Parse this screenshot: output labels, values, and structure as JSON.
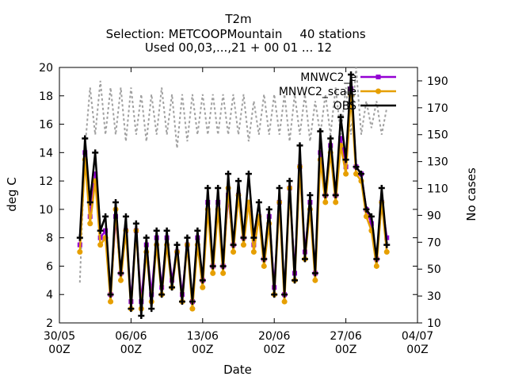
{
  "chart_data": {
    "type": "line",
    "title": "T2m",
    "subtitle_1": "Selection: METCOOPMountain",
    "subtitle_stations": "40 stations",
    "subtitle_2": "Used 00,03,...,21 + 00 01 ... 12",
    "xlabel": "Date",
    "ylabel": "deg C",
    "y2label": "No cases",
    "x_range": [
      "2023-05-30T00Z",
      "2023-07-04T00Z"
    ],
    "ylim": [
      2,
      20
    ],
    "y2lim": [
      10,
      200
    ],
    "x_ticks": [
      {
        "date": "2023-05-30T00Z",
        "line1": "30/05",
        "line2": "00Z"
      },
      {
        "date": "2023-06-06T00Z",
        "line1": "06/06",
        "line2": "00Z"
      },
      {
        "date": "2023-06-13T00Z",
        "line1": "13/06",
        "line2": "00Z"
      },
      {
        "date": "2023-06-20T00Z",
        "line1": "20/06",
        "line2": "00Z"
      },
      {
        "date": "2023-06-27T00Z",
        "line1": "27/06",
        "line2": "00Z"
      },
      {
        "date": "2023-07-04T00Z",
        "line1": "04/07",
        "line2": "00Z"
      }
    ],
    "y_ticks": [
      "2",
      "4",
      "6",
      "8",
      "10",
      "12",
      "14",
      "16",
      "18",
      "20"
    ],
    "y2_ticks": [
      "10",
      "30",
      "50",
      "70",
      "90",
      "110",
      "130",
      "150",
      "170",
      "190"
    ],
    "legend_position": "top-right",
    "series": [
      {
        "name": "MNWC2_e",
        "color": "#9400d3",
        "marker": "square",
        "axis": "left",
        "x": [
          "2023-06-01T00Z",
          "2023-06-01T12Z",
          "2023-06-02T00Z",
          "2023-06-02T12Z",
          "2023-06-03T00Z",
          "2023-06-03T12Z",
          "2023-06-04T00Z",
          "2023-06-04T12Z",
          "2023-06-05T00Z",
          "2023-06-05T12Z",
          "2023-06-06T00Z",
          "2023-06-06T12Z",
          "2023-06-07T00Z",
          "2023-06-07T12Z",
          "2023-06-08T00Z",
          "2023-06-08T12Z",
          "2023-06-09T00Z",
          "2023-06-09T12Z",
          "2023-06-10T00Z",
          "2023-06-10T12Z",
          "2023-06-11T00Z",
          "2023-06-11T12Z",
          "2023-06-12T00Z",
          "2023-06-12T12Z",
          "2023-06-13T00Z",
          "2023-06-13T12Z",
          "2023-06-14T00Z",
          "2023-06-14T12Z",
          "2023-06-15T00Z",
          "2023-06-15T12Z",
          "2023-06-16T00Z",
          "2023-06-16T12Z",
          "2023-06-17T00Z",
          "2023-06-17T12Z",
          "2023-06-18T00Z",
          "2023-06-18T12Z",
          "2023-06-19T00Z",
          "2023-06-19T12Z",
          "2023-06-20T00Z",
          "2023-06-20T12Z",
          "2023-06-21T00Z",
          "2023-06-21T12Z",
          "2023-06-22T00Z",
          "2023-06-22T12Z",
          "2023-06-23T00Z",
          "2023-06-23T12Z",
          "2023-06-24T00Z",
          "2023-06-24T12Z",
          "2023-06-25T00Z",
          "2023-06-25T12Z",
          "2023-06-26T00Z",
          "2023-06-26T12Z",
          "2023-06-27T00Z",
          "2023-06-27T12Z",
          "2023-06-28T00Z",
          "2023-06-28T12Z",
          "2023-06-29T00Z",
          "2023-06-29T12Z",
          "2023-06-30T00Z",
          "2023-06-30T12Z",
          "2023-07-01T00Z"
        ],
        "y": [
          7.5,
          14.0,
          9.5,
          12.5,
          8.0,
          8.5,
          4.0,
          9.5,
          5.5,
          8.5,
          3.5,
          8.5,
          3.5,
          7.5,
          4.0,
          8.0,
          4.5,
          8.0,
          5.0,
          7.0,
          4.0,
          7.5,
          3.5,
          8.0,
          5.0,
          10.5,
          6.0,
          10.5,
          6.0,
          11.0,
          7.5,
          11.0,
          8.0,
          10.5,
          7.5,
          9.5,
          6.5,
          9.5,
          4.5,
          10.5,
          4.0,
          11.5,
          5.5,
          13.0,
          7.0,
          10.5,
          5.5,
          14.0,
          11.0,
          14.5,
          11.0,
          15.0,
          13.0,
          18.5,
          13.0,
          12.5,
          10.0,
          9.0,
          6.5,
          10.5,
          8.0
        ]
      },
      {
        "name": "MNWC2_scale",
        "color": "#e69f00",
        "marker": "circle",
        "axis": "left",
        "x": [
          "2023-06-01T00Z",
          "2023-06-01T12Z",
          "2023-06-02T00Z",
          "2023-06-02T12Z",
          "2023-06-03T00Z",
          "2023-06-03T12Z",
          "2023-06-04T00Z",
          "2023-06-04T12Z",
          "2023-06-05T00Z",
          "2023-06-05T12Z",
          "2023-06-06T00Z",
          "2023-06-06T12Z",
          "2023-06-07T00Z",
          "2023-06-07T12Z",
          "2023-06-08T00Z",
          "2023-06-08T12Z",
          "2023-06-09T00Z",
          "2023-06-09T12Z",
          "2023-06-10T00Z",
          "2023-06-10T12Z",
          "2023-06-11T00Z",
          "2023-06-11T12Z",
          "2023-06-12T00Z",
          "2023-06-12T12Z",
          "2023-06-13T00Z",
          "2023-06-13T12Z",
          "2023-06-14T00Z",
          "2023-06-14T12Z",
          "2023-06-15T00Z",
          "2023-06-15T12Z",
          "2023-06-16T00Z",
          "2023-06-16T12Z",
          "2023-06-17T00Z",
          "2023-06-17T12Z",
          "2023-06-18T00Z",
          "2023-06-18T12Z",
          "2023-06-19T00Z",
          "2023-06-19T12Z",
          "2023-06-20T00Z",
          "2023-06-20T12Z",
          "2023-06-21T00Z",
          "2023-06-21T12Z",
          "2023-06-22T00Z",
          "2023-06-22T12Z",
          "2023-06-23T00Z",
          "2023-06-23T12Z",
          "2023-06-24T00Z",
          "2023-06-24T12Z",
          "2023-06-25T00Z",
          "2023-06-25T12Z",
          "2023-06-26T00Z",
          "2023-06-26T12Z",
          "2023-06-27T00Z",
          "2023-06-27T12Z",
          "2023-06-28T00Z",
          "2023-06-28T12Z",
          "2023-06-29T00Z",
          "2023-06-29T12Z",
          "2023-06-30T00Z",
          "2023-06-30T12Z",
          "2023-07-01T00Z"
        ],
        "y": [
          7.0,
          13.5,
          9.0,
          12.0,
          7.5,
          8.0,
          3.5,
          10.0,
          5.0,
          8.5,
          3.0,
          8.5,
          3.0,
          7.0,
          3.5,
          7.5,
          4.0,
          7.5,
          4.5,
          7.0,
          3.5,
          7.5,
          3.0,
          7.5,
          4.5,
          10.0,
          5.5,
          10.0,
          5.5,
          11.5,
          7.0,
          11.0,
          7.5,
          10.5,
          7.0,
          9.5,
          6.0,
          9.0,
          4.0,
          10.5,
          3.5,
          11.5,
          5.0,
          13.0,
          6.5,
          10.0,
          5.0,
          13.5,
          10.5,
          14.0,
          10.5,
          14.5,
          12.5,
          18.0,
          12.5,
          12.0,
          9.5,
          8.5,
          6.0,
          10.5,
          7.0
        ]
      },
      {
        "name": "OBS",
        "color": "#000000",
        "marker": "plus",
        "axis": "left",
        "x": [
          "2023-06-01T00Z",
          "2023-06-01T12Z",
          "2023-06-02T00Z",
          "2023-06-02T12Z",
          "2023-06-03T00Z",
          "2023-06-03T12Z",
          "2023-06-04T00Z",
          "2023-06-04T12Z",
          "2023-06-05T00Z",
          "2023-06-05T12Z",
          "2023-06-06T00Z",
          "2023-06-06T12Z",
          "2023-06-07T00Z",
          "2023-06-07T12Z",
          "2023-06-08T00Z",
          "2023-06-08T12Z",
          "2023-06-09T00Z",
          "2023-06-09T12Z",
          "2023-06-10T00Z",
          "2023-06-10T12Z",
          "2023-06-11T00Z",
          "2023-06-11T12Z",
          "2023-06-12T00Z",
          "2023-06-12T12Z",
          "2023-06-13T00Z",
          "2023-06-13T12Z",
          "2023-06-14T00Z",
          "2023-06-14T12Z",
          "2023-06-15T00Z",
          "2023-06-15T12Z",
          "2023-06-16T00Z",
          "2023-06-16T12Z",
          "2023-06-17T00Z",
          "2023-06-17T12Z",
          "2023-06-18T00Z",
          "2023-06-18T12Z",
          "2023-06-19T00Z",
          "2023-06-19T12Z",
          "2023-06-20T00Z",
          "2023-06-20T12Z",
          "2023-06-21T00Z",
          "2023-06-21T12Z",
          "2023-06-22T00Z",
          "2023-06-22T12Z",
          "2023-06-23T00Z",
          "2023-06-23T12Z",
          "2023-06-24T00Z",
          "2023-06-24T12Z",
          "2023-06-25T00Z",
          "2023-06-25T12Z",
          "2023-06-26T00Z",
          "2023-06-26T12Z",
          "2023-06-27T00Z",
          "2023-06-27T12Z",
          "2023-06-28T00Z",
          "2023-06-28T12Z",
          "2023-06-29T00Z",
          "2023-06-29T12Z",
          "2023-06-30T00Z",
          "2023-06-30T12Z",
          "2023-07-01T00Z"
        ],
        "y": [
          8.0,
          15.0,
          10.5,
          14.0,
          8.5,
          9.5,
          4.0,
          10.5,
          5.5,
          9.5,
          3.0,
          9.0,
          2.5,
          8.0,
          3.0,
          8.5,
          4.0,
          8.5,
          4.5,
          7.5,
          3.5,
          8.0,
          3.5,
          8.5,
          5.0,
          11.5,
          6.0,
          11.5,
          6.0,
          12.5,
          7.5,
          12.0,
          8.0,
          12.5,
          8.0,
          10.5,
          6.5,
          10.0,
          4.0,
          11.5,
          4.0,
          12.0,
          5.0,
          14.5,
          6.5,
          11.0,
          5.5,
          15.5,
          11.0,
          15.0,
          11.0,
          16.5,
          13.5,
          19.5,
          13.0,
          12.5,
          10.0,
          9.5,
          6.5,
          11.5,
          7.5
        ]
      },
      {
        "name": "No cases",
        "color": "#a0a0a0",
        "marker": "none",
        "axis": "right",
        "x": [
          "2023-06-01T00Z",
          "2023-06-01T12Z",
          "2023-06-02T00Z",
          "2023-06-02T12Z",
          "2023-06-03T00Z",
          "2023-06-03T12Z",
          "2023-06-04T00Z",
          "2023-06-04T12Z",
          "2023-06-05T00Z",
          "2023-06-05T12Z",
          "2023-06-06T00Z",
          "2023-06-06T12Z",
          "2023-06-07T00Z",
          "2023-06-07T12Z",
          "2023-06-08T00Z",
          "2023-06-08T12Z",
          "2023-06-09T00Z",
          "2023-06-09T12Z",
          "2023-06-10T00Z",
          "2023-06-10T12Z",
          "2023-06-11T00Z",
          "2023-06-11T12Z",
          "2023-06-12T00Z",
          "2023-06-12T12Z",
          "2023-06-13T00Z",
          "2023-06-13T12Z",
          "2023-06-14T00Z",
          "2023-06-14T12Z",
          "2023-06-15T00Z",
          "2023-06-15T12Z",
          "2023-06-16T00Z",
          "2023-06-16T12Z",
          "2023-06-17T00Z",
          "2023-06-17T12Z",
          "2023-06-18T00Z",
          "2023-06-18T12Z",
          "2023-06-19T00Z",
          "2023-06-19T12Z",
          "2023-06-20T00Z",
          "2023-06-20T12Z",
          "2023-06-21T00Z",
          "2023-06-21T12Z",
          "2023-06-22T00Z",
          "2023-06-22T12Z",
          "2023-06-23T00Z",
          "2023-06-23T12Z",
          "2023-06-24T00Z",
          "2023-06-24T12Z",
          "2023-06-25T00Z",
          "2023-06-25T12Z",
          "2023-06-26T00Z",
          "2023-06-26T12Z",
          "2023-06-27T00Z",
          "2023-06-27T12Z",
          "2023-06-28T00Z",
          "2023-06-28T12Z",
          "2023-06-29T00Z",
          "2023-06-29T12Z",
          "2023-06-30T00Z",
          "2023-06-30T12Z",
          "2023-07-01T00Z"
        ],
        "y": [
          40,
          140,
          185,
          150,
          190,
          150,
          185,
          150,
          185,
          145,
          185,
          150,
          180,
          145,
          180,
          150,
          185,
          150,
          180,
          140,
          180,
          145,
          180,
          150,
          180,
          150,
          180,
          150,
          180,
          150,
          180,
          150,
          180,
          145,
          175,
          150,
          180,
          150,
          180,
          150,
          180,
          145,
          180,
          150,
          180,
          145,
          175,
          150,
          180,
          150,
          185,
          150,
          185,
          150,
          200,
          150,
          175,
          155,
          175,
          150,
          170
        ]
      }
    ]
  }
}
